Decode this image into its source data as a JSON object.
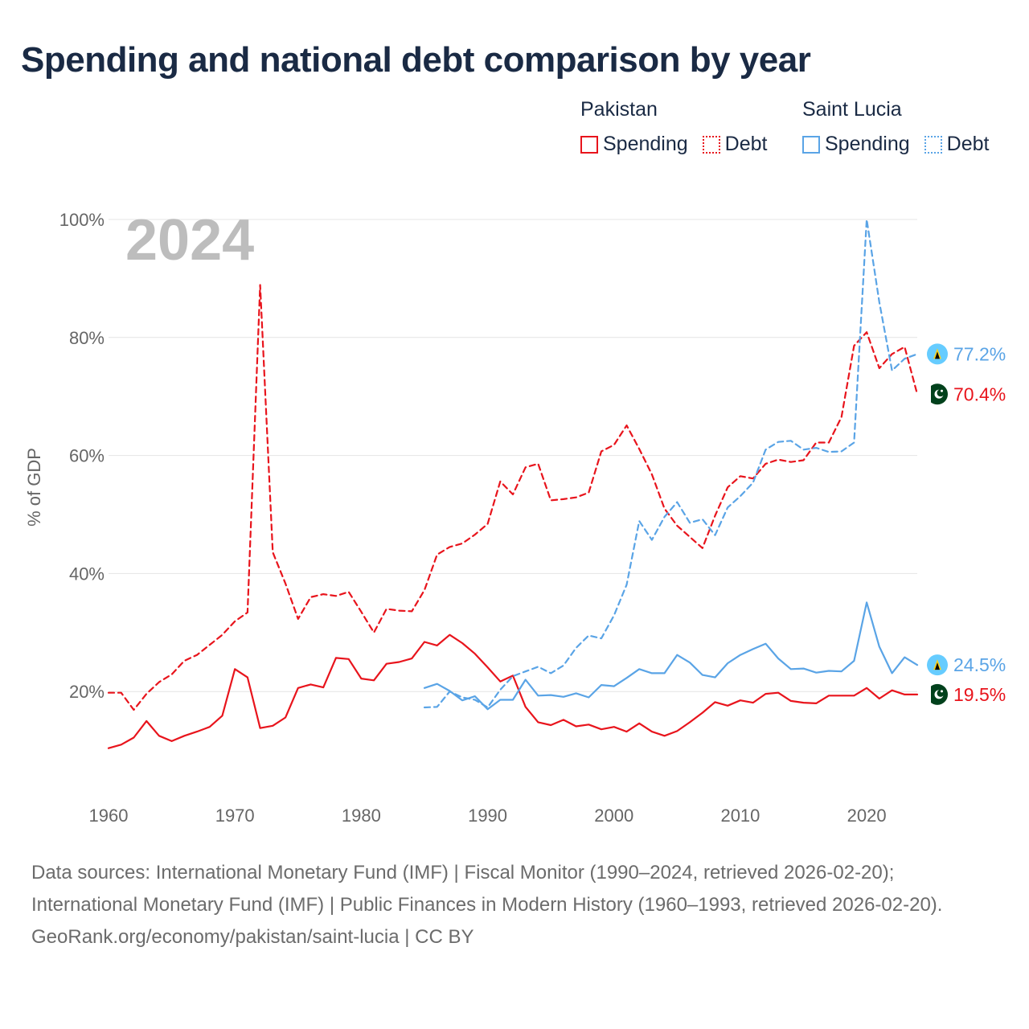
{
  "title": "Spending and national debt comparison by year",
  "legend": {
    "groups": [
      {
        "name": "Pakistan",
        "color": "#e8141c",
        "spending_label": "Spending",
        "debt_label": "Debt"
      },
      {
        "name": "Saint Lucia",
        "color": "#5aa4e6",
        "spending_label": "Spending",
        "debt_label": "Debt"
      }
    ]
  },
  "chart_data": {
    "type": "line",
    "title": "Spending and national debt comparison by year",
    "ylabel": "% of GDP",
    "xlabel": "",
    "xlim": [
      1960,
      2024
    ],
    "ylim": [
      0,
      100
    ],
    "x_ticks": [
      1960,
      1970,
      1980,
      1990,
      2000,
      2010,
      2020
    ],
    "y_ticks": [
      20,
      40,
      60,
      80,
      100
    ],
    "y_tick_labels": [
      "20%",
      "40%",
      "60%",
      "80%",
      "100%"
    ],
    "year_watermark": "2024",
    "series": [
      {
        "name": "Pakistan Debt",
        "country": "Pakistan",
        "kind": "Debt",
        "color": "#e8141c",
        "dash": true,
        "x": [
          1960,
          1961,
          1962,
          1963,
          1964,
          1965,
          1966,
          1967,
          1968,
          1969,
          1970,
          1971,
          1972,
          1973,
          1974,
          1975,
          1976,
          1977,
          1978,
          1979,
          1980,
          1981,
          1982,
          1983,
          1984,
          1985,
          1986,
          1987,
          1988,
          1989,
          1990,
          1991,
          1992,
          1993,
          1994,
          1995,
          1996,
          1997,
          1998,
          1999,
          2000,
          2001,
          2002,
          2003,
          2004,
          2005,
          2006,
          2007,
          2008,
          2009,
          2010,
          2011,
          2012,
          2013,
          2014,
          2015,
          2016,
          2017,
          2018,
          2019,
          2020,
          2021,
          2022,
          2023,
          2024
        ],
        "values": [
          19.8,
          19.8,
          16.9,
          19.6,
          21.6,
          22.9,
          25.2,
          26.2,
          27.9,
          29.6,
          31.9,
          33.4,
          88.9,
          43.6,
          38.3,
          32.3,
          36.0,
          36.5,
          36.2,
          36.9,
          33.5,
          30.0,
          34.0,
          33.7,
          33.6,
          37.2,
          43.2,
          44.5,
          45.1,
          46.6,
          48.4,
          55.6,
          53.4,
          58.0,
          58.6,
          52.4,
          52.6,
          52.9,
          53.7,
          60.7,
          61.8,
          65.1,
          61.1,
          56.8,
          51.0,
          48.1,
          46.2,
          44.3,
          49.8,
          54.6,
          56.5,
          56.1,
          58.6,
          59.3,
          58.9,
          59.2,
          62.2,
          62.2,
          66.5,
          78.6,
          80.9,
          74.8,
          77.2,
          78.4,
          70.4
        ],
        "end_label": "70.4%",
        "flag": "pakistan-flag"
      },
      {
        "name": "Pakistan Spending",
        "country": "Pakistan",
        "kind": "Spending",
        "color": "#e8141c",
        "dash": false,
        "x": [
          1960,
          1961,
          1962,
          1963,
          1964,
          1965,
          1966,
          1967,
          1968,
          1969,
          1970,
          1971,
          1972,
          1973,
          1974,
          1975,
          1976,
          1977,
          1978,
          1979,
          1980,
          1981,
          1982,
          1983,
          1984,
          1985,
          1986,
          1987,
          1988,
          1989,
          1990,
          1991,
          1992,
          1993,
          1994,
          1995,
          1996,
          1997,
          1998,
          1999,
          2000,
          2001,
          2002,
          2003,
          2004,
          2005,
          2006,
          2007,
          2008,
          2009,
          2010,
          2011,
          2012,
          2013,
          2014,
          2015,
          2016,
          2017,
          2018,
          2019,
          2020,
          2021,
          2022,
          2023,
          2024
        ],
        "values": [
          10.4,
          11.0,
          12.2,
          15.0,
          12.5,
          11.6,
          12.5,
          13.2,
          14.0,
          15.9,
          23.8,
          22.4,
          13.8,
          14.2,
          15.6,
          20.6,
          21.2,
          20.7,
          25.7,
          25.5,
          22.2,
          21.9,
          24.7,
          25.0,
          25.6,
          28.4,
          27.8,
          29.6,
          28.2,
          26.4,
          24.1,
          21.7,
          22.7,
          17.4,
          14.8,
          14.3,
          15.2,
          14.1,
          14.4,
          13.6,
          14.0,
          13.2,
          14.6,
          13.2,
          12.5,
          13.3,
          14.8,
          16.4,
          18.2,
          17.6,
          18.5,
          18.1,
          19.6,
          19.8,
          18.4,
          18.1,
          18.0,
          19.3,
          19.3,
          19.3,
          20.6,
          18.8,
          20.2,
          19.5,
          19.5
        ],
        "end_label": "19.5%",
        "flag": "pakistan-flag"
      },
      {
        "name": "Saint Lucia Debt",
        "country": "Saint Lucia",
        "kind": "Debt",
        "color": "#5aa4e6",
        "dash": true,
        "x": [
          1985,
          1986,
          1987,
          1988,
          1989,
          1990,
          1991,
          1992,
          1993,
          1994,
          1995,
          1996,
          1997,
          1998,
          1999,
          2000,
          2001,
          2002,
          2003,
          2004,
          2005,
          2006,
          2007,
          2008,
          2009,
          2010,
          2011,
          2012,
          2013,
          2014,
          2015,
          2016,
          2017,
          2018,
          2019,
          2020,
          2021,
          2022,
          2023,
          2024
        ],
        "values": [
          17.3,
          17.4,
          20.0,
          19.0,
          18.6,
          17.3,
          20.3,
          22.6,
          23.4,
          24.2,
          23.1,
          24.4,
          27.4,
          29.5,
          29.0,
          32.9,
          38.1,
          48.9,
          45.7,
          49.6,
          52.1,
          48.6,
          49.2,
          46.5,
          51.2,
          53.1,
          55.4,
          61.0,
          62.3,
          62.5,
          61.0,
          61.3,
          60.6,
          60.7,
          62.2,
          100.0,
          86.0,
          74.4,
          76.4,
          77.2
        ],
        "end_label": "77.2%",
        "flag": "saint-lucia-flag"
      },
      {
        "name": "Saint Lucia Spending",
        "country": "Saint Lucia",
        "kind": "Spending",
        "color": "#5aa4e6",
        "dash": false,
        "x": [
          1985,
          1986,
          1987,
          1988,
          1989,
          1990,
          1991,
          1992,
          1993,
          1994,
          1995,
          1996,
          1997,
          1998,
          1999,
          2000,
          2001,
          2002,
          2003,
          2004,
          2005,
          2006,
          2007,
          2008,
          2009,
          2010,
          2011,
          2012,
          2013,
          2014,
          2015,
          2016,
          2017,
          2018,
          2019,
          2020,
          2021,
          2022,
          2023,
          2024
        ],
        "values": [
          20.6,
          21.3,
          20.1,
          18.5,
          19.2,
          17.0,
          18.6,
          18.6,
          22.0,
          19.3,
          19.4,
          19.1,
          19.7,
          19.0,
          21.1,
          20.9,
          22.3,
          23.8,
          23.1,
          23.1,
          26.2,
          24.9,
          22.8,
          22.4,
          24.8,
          26.2,
          27.2,
          28.1,
          25.6,
          23.8,
          23.9,
          23.2,
          23.5,
          23.4,
          25.2,
          35.1,
          27.6,
          23.1,
          25.8,
          24.5
        ],
        "end_label": "24.5%",
        "flag": "saint-lucia-flag"
      }
    ]
  },
  "footer": {
    "sources": "Data sources: International Monetary Fund (IMF) | Fiscal Monitor (1990–2024, retrieved 2026-02-20); International Monetary Fund (IMF) | Public Finances in Modern History (1960–1993, retrieved 2026-02-20).",
    "credit": "GeoRank.org/economy/pakistan/saint-lucia | CC BY"
  }
}
